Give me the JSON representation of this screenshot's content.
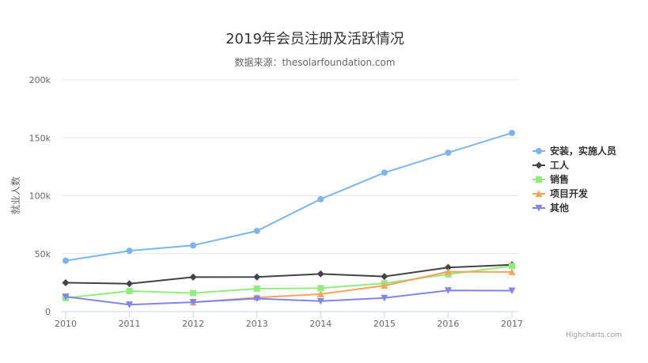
{
  "chart_data": {
    "type": "line",
    "title": "2019年会员注册及活跃情况",
    "subtitle": "数据来源：thesolarfoundation.com",
    "ylabel": "就业人数",
    "xlabel": "",
    "x": [
      2010,
      2011,
      2012,
      2013,
      2014,
      2015,
      2016,
      2017
    ],
    "ylim": [
      0,
      200000
    ],
    "yticks": [
      0,
      50000,
      100000,
      150000,
      200000
    ],
    "ytick_labels": [
      "0",
      "50k",
      "100k",
      "150k",
      "200k"
    ],
    "grid": true,
    "legend_position": "right",
    "series": [
      {
        "name": "安装，实施人员",
        "color": "#7cb5ec",
        "marker": "circle",
        "values": [
          43934,
          52503,
          57177,
          69658,
          97031,
          119931,
          137133,
          154175
        ]
      },
      {
        "name": "工人",
        "color": "#434348",
        "marker": "diamond",
        "values": [
          24916,
          24064,
          29742,
          29851,
          32490,
          30282,
          38121,
          40434
        ]
      },
      {
        "name": "销售",
        "color": "#90ed7d",
        "marker": "square",
        "values": [
          11744,
          17722,
          16005,
          19771,
          20185,
          24377,
          32147,
          39387
        ]
      },
      {
        "name": "项目开发",
        "color": "#f7a35c",
        "marker": "triangle",
        "values": [
          null,
          null,
          7988,
          12169,
          15112,
          22452,
          34400,
          34227
        ]
      },
      {
        "name": "其他",
        "color": "#8085e9",
        "marker": "triangle-down",
        "values": [
          12908,
          5948,
          8105,
          11248,
          8989,
          11816,
          18274,
          18111
        ]
      }
    ],
    "credits": "Highcharts.com"
  }
}
